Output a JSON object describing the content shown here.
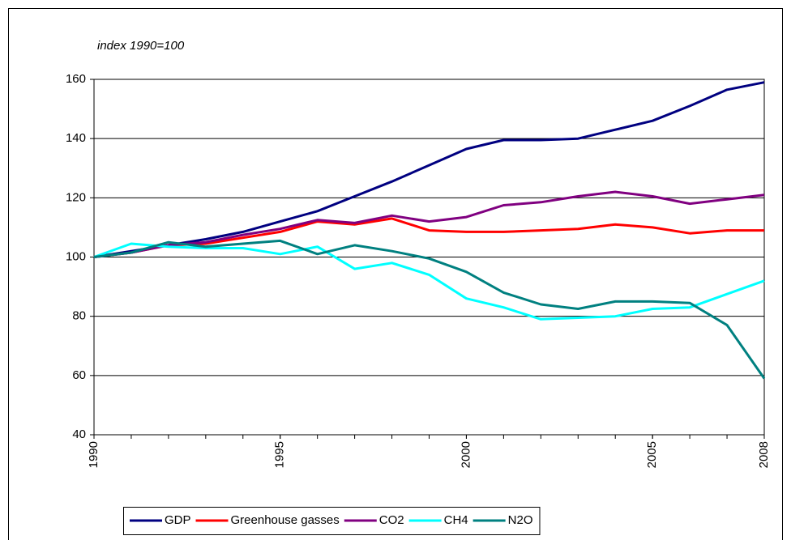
{
  "chart_data": {
    "type": "line",
    "annotation": "index 1990=100",
    "x": [
      1990,
      1991,
      1992,
      1993,
      1994,
      1995,
      1996,
      1997,
      1998,
      1999,
      2000,
      2001,
      2002,
      2003,
      2004,
      2005,
      2006,
      2007,
      2008
    ],
    "xlim": [
      1990,
      2008
    ],
    "xticks": [
      1990,
      1995,
      2000,
      2005,
      2008
    ],
    "ylim": [
      40,
      160
    ],
    "yticks": [
      40,
      60,
      80,
      100,
      120,
      140,
      160
    ],
    "grid": true,
    "legend": "bottom",
    "series": [
      {
        "name": "GDP",
        "color": "#000080",
        "values": [
          100,
          102,
          104,
          106,
          108.5,
          112,
          115.5,
          120.5,
          125.5,
          131,
          136.5,
          139.5,
          139.5,
          140,
          143,
          146,
          151,
          156.5,
          159
        ]
      },
      {
        "name": "Greenhouse gasses",
        "color": "#ff0000",
        "values": [
          100,
          101.5,
          104,
          104.5,
          106.5,
          108.5,
          112,
          111,
          113,
          109,
          108.5,
          108.5,
          109,
          109.5,
          111,
          110,
          108,
          109,
          109
        ]
      },
      {
        "name": "CO2",
        "color": "#800080",
        "values": [
          100,
          101.5,
          104,
          105,
          107.5,
          109.5,
          112.5,
          111.5,
          114,
          112,
          113.5,
          117.5,
          118.5,
          120.5,
          122,
          120.5,
          118,
          119.5,
          121
        ]
      },
      {
        "name": "CH4",
        "color": "#00ffff",
        "values": [
          100,
          104.5,
          103.5,
          103,
          103,
          101,
          103.5,
          96,
          98,
          94,
          86,
          83,
          79,
          79.5,
          80,
          82.5,
          83,
          87.5,
          92
        ]
      },
      {
        "name": "N2O",
        "color": "#008080",
        "values": [
          100,
          101.5,
          105,
          103.5,
          104.5,
          105.5,
          101,
          104,
          102,
          99.5,
          95,
          88,
          84,
          82.5,
          85,
          85,
          84.5,
          77,
          59
        ]
      }
    ]
  }
}
